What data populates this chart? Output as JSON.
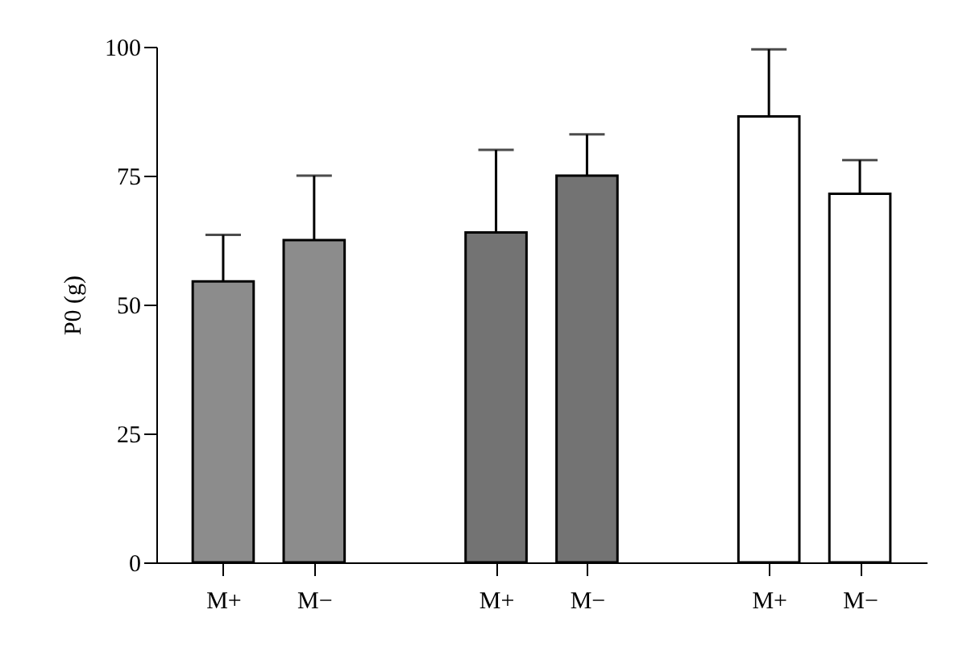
{
  "chart_data": {
    "type": "bar",
    "ylabel": "P0 (g)",
    "categories": [
      "M+",
      "M−",
      null,
      "M+",
      "M−",
      null,
      "M+",
      "M−"
    ],
    "values": [
      54.5,
      62.5,
      null,
      64,
      75,
      null,
      86.5,
      71.5
    ],
    "errors": [
      [
        54.5,
        63.5
      ],
      [
        62.5,
        75
      ],
      null,
      [
        64,
        80
      ],
      [
        75,
        83
      ],
      null,
      [
        86.5,
        99.5
      ],
      [
        71.5,
        78
      ]
    ],
    "colors": [
      "#8c8c8c",
      "#8c8c8c",
      null,
      "#737373",
      "#737373",
      null,
      "#ffffff",
      "#ffffff"
    ],
    "ylim": [
      0,
      100
    ],
    "yticks": [
      0,
      25,
      50,
      75,
      100
    ],
    "grid": false
  }
}
